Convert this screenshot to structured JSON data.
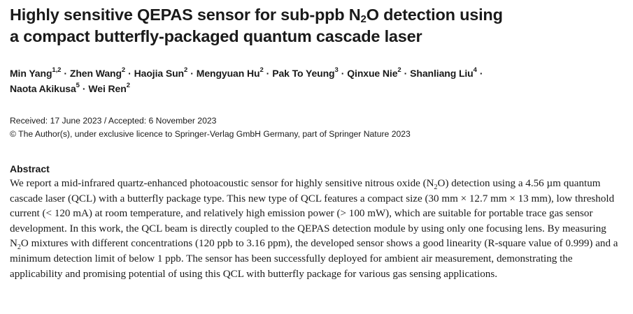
{
  "paper": {
    "title": {
      "part1": "Highly sensitive QEPAS sensor for sub-ppb N",
      "sub": "2",
      "part2": "O detection using",
      "line2": "a compact butterfly-packaged quantum cascade laser"
    },
    "authors": [
      {
        "name": "Min Yang",
        "affil": "1,2"
      },
      {
        "name": "Zhen Wang",
        "affil": "2"
      },
      {
        "name": "Haojia Sun",
        "affil": "2"
      },
      {
        "name": "Mengyuan Hu",
        "affil": "2"
      },
      {
        "name": "Pak To Yeung",
        "affil": "3"
      },
      {
        "name": "Qinxue Nie",
        "affil": "2"
      },
      {
        "name": "Shanliang Liu",
        "affil": "4"
      },
      {
        "name": "Naota Akikusa",
        "affil": "5"
      },
      {
        "name": "Wei Ren",
        "affil": "2"
      }
    ],
    "separator": "·",
    "dates": "Received: 17 June 2023 / Accepted: 6 November 2023",
    "copyright": "© The Author(s), under exclusive licence to Springer-Verlag GmbH Germany, part of Springer Nature 2023",
    "abstract_heading": "Abstract",
    "abstract": {
      "p1": "We report a mid-infrared quartz-enhanced photoacoustic sensor for highly sensitive nitrous oxide (N",
      "sub1": "2",
      "p2": "O) detection using a 4.56 µm quantum cascade laser (QCL) with a butterfly package type. This new type of QCL features a compact size (30 mm × 12.7 mm × 13 mm), low threshold current (< 120 mA) at room temperature, and relatively high emission power (> 100 mW), which are suitable for portable trace gas sensor development. In this work, the QCL beam is directly coupled to the QEPAS detection module by using only one focusing lens. By measuring N",
      "sub2": "2",
      "p3": "O mixtures with different concentrations (120 ppb to 3.16 ppm), the developed sensor shows a good linearity (R-square value of 0.999) and a minimum detection limit of below 1 ppb. The sensor has been successfully deployed for ambient air measurement, demonstrating the applicability and promising potential of using this QCL with butterfly package for various gas sensing applications."
    }
  }
}
